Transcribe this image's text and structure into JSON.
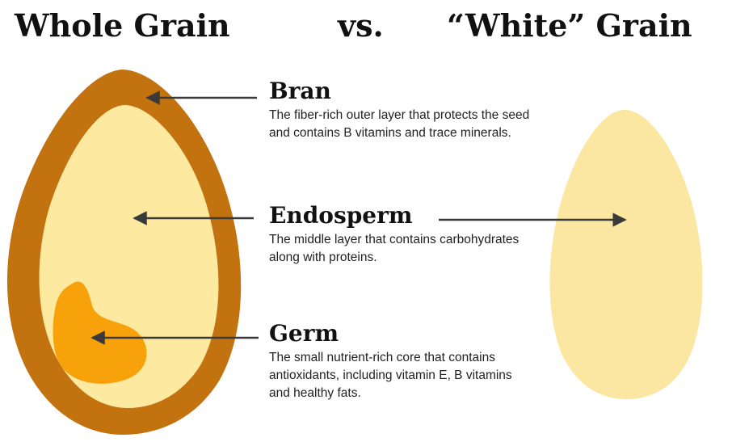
{
  "header": {
    "left_title": "Whole Grain",
    "vs": "vs.",
    "right_title": "“White” Grain"
  },
  "parts": [
    {
      "name": "Bran",
      "description": "The fiber-rich outer layer that protects the seed and contains B vitamins and trace minerals."
    },
    {
      "name": "Endosperm",
      "description": "The middle layer that contains carbohydrates along with proteins."
    },
    {
      "name": "Germ",
      "description": "The small nutrient-rich core that contains antioxidants, including vitamin E, B vitamins and healthy fats."
    }
  ],
  "colors": {
    "bran": "#c2720f",
    "endosperm": "#fde9a0",
    "white_grain": "#fbe7a1",
    "germ": "#f7a20a",
    "arrow": "#3a3a3a"
  }
}
